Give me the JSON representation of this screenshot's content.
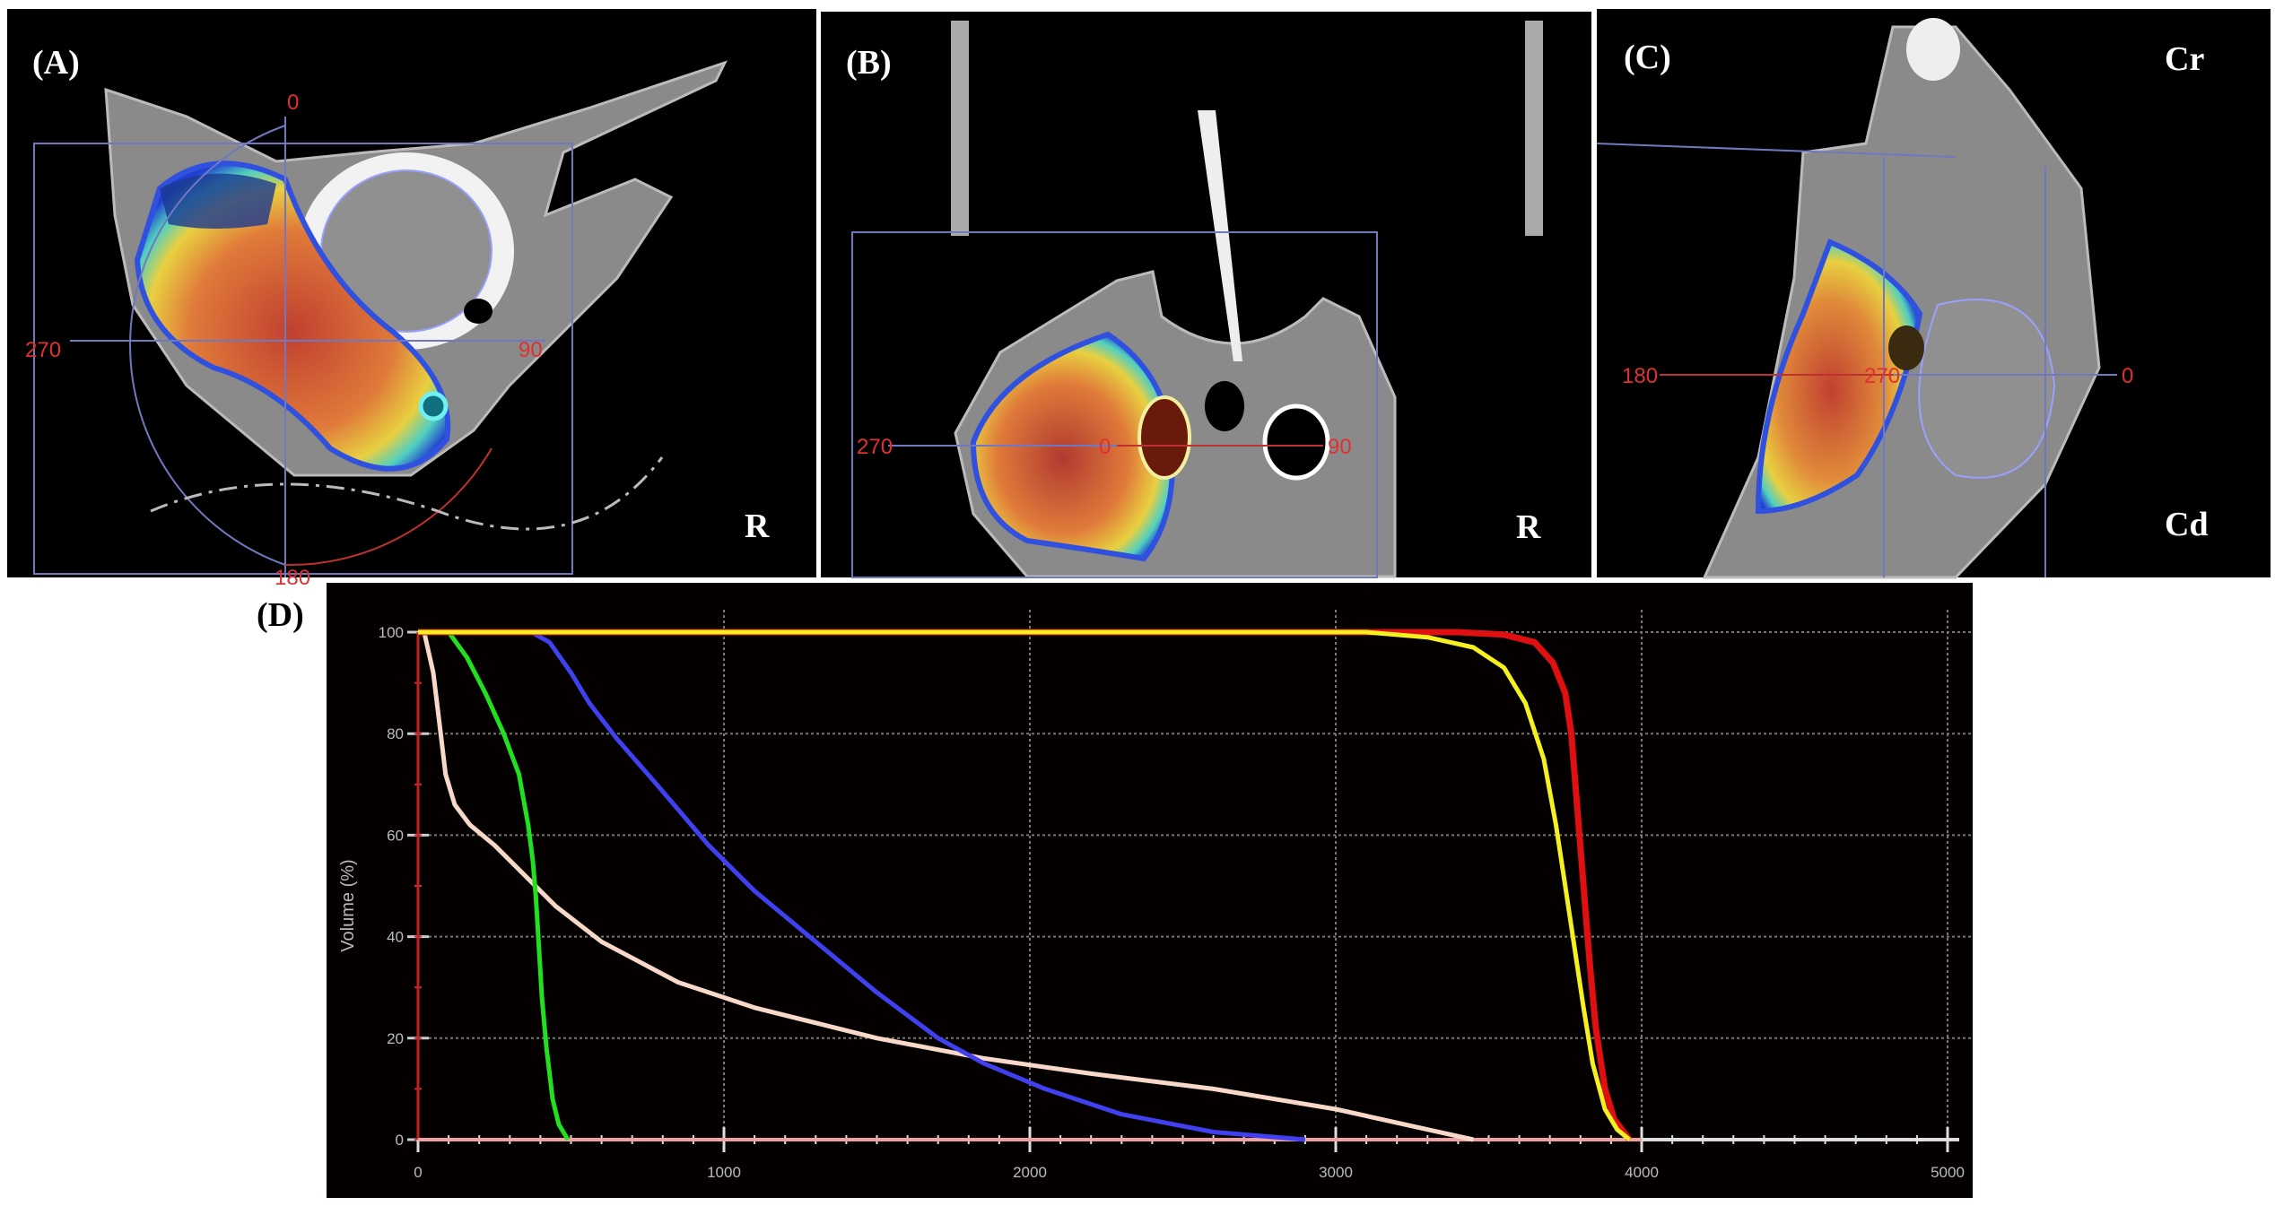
{
  "panels": {
    "a": {
      "label": "(A)",
      "orientation": "R",
      "angles": {
        "top": "0",
        "left": "270",
        "right": "90",
        "bottom": "180"
      }
    },
    "b": {
      "label": "(B)",
      "orientation": "R",
      "angles": {
        "left": "270",
        "center": "0",
        "right": "90"
      }
    },
    "c": {
      "label": "(C)",
      "orientation_top": "Cr",
      "orientation_bottom": "Cd",
      "angles": {
        "left": "180",
        "center": "270",
        "right": "0"
      }
    },
    "d": {
      "label": "(D)"
    }
  },
  "colors": {
    "red": "#e01010",
    "yellow": "#f5f020",
    "green": "#20e020",
    "blue": "#4040f0",
    "pink": "#f8d8c8"
  },
  "chart_data": {
    "type": "line",
    "title": "",
    "xlabel": "",
    "ylabel": "Volume (%)",
    "xlim": [
      0,
      5000
    ],
    "ylim": [
      0,
      100
    ],
    "xticks": [
      "0",
      "1000",
      "2000",
      "3000",
      "4000",
      "5000"
    ],
    "yticks": [
      "0",
      "20",
      "40",
      "60",
      "80",
      "100"
    ],
    "grid": true,
    "series": [
      {
        "name": "red",
        "color": "#e01010",
        "x": [
          0,
          3400,
          3550,
          3650,
          3710,
          3750,
          3770,
          3790,
          3810,
          3830,
          3850,
          3880,
          3910,
          3960
        ],
        "y": [
          100,
          100,
          99.5,
          98,
          94,
          88,
          80,
          65,
          50,
          35,
          22,
          10,
          4,
          0
        ]
      },
      {
        "name": "yellow",
        "color": "#f5f020",
        "x": [
          0,
          3100,
          3300,
          3450,
          3550,
          3620,
          3680,
          3720,
          3750,
          3780,
          3810,
          3840,
          3880,
          3920,
          3960
        ],
        "y": [
          100,
          100,
          99,
          97,
          93,
          86,
          75,
          62,
          50,
          38,
          26,
          15,
          6,
          2,
          0
        ]
      },
      {
        "name": "green",
        "color": "#20e020",
        "x": [
          100,
          160,
          220,
          280,
          330,
          360,
          375,
          385,
          395,
          405,
          420,
          440,
          460,
          490
        ],
        "y": [
          100,
          95,
          88,
          80,
          72,
          62,
          55,
          48,
          38,
          28,
          18,
          8,
          3,
          0
        ]
      },
      {
        "name": "blue",
        "color": "#4040f0",
        "x": [
          370,
          430,
          500,
          560,
          650,
          780,
          950,
          1100,
          1300,
          1500,
          1700,
          1850,
          2050,
          2300,
          2600,
          2900
        ],
        "y": [
          100,
          98,
          92,
          86,
          79,
          70,
          58,
          49,
          39,
          29,
          20,
          15,
          10,
          5,
          1.5,
          0
        ]
      },
      {
        "name": "pink",
        "color": "#f8d8c8",
        "x": [
          20,
          50,
          70,
          90,
          120,
          170,
          250,
          350,
          450,
          600,
          850,
          1100,
          1500,
          1850,
          2200,
          2600,
          3000,
          3300,
          3450
        ],
        "y": [
          100,
          92,
          82,
          72,
          66,
          62,
          58,
          52,
          46,
          39,
          31,
          26,
          20,
          16,
          13,
          10,
          6,
          2,
          0
        ]
      }
    ]
  }
}
